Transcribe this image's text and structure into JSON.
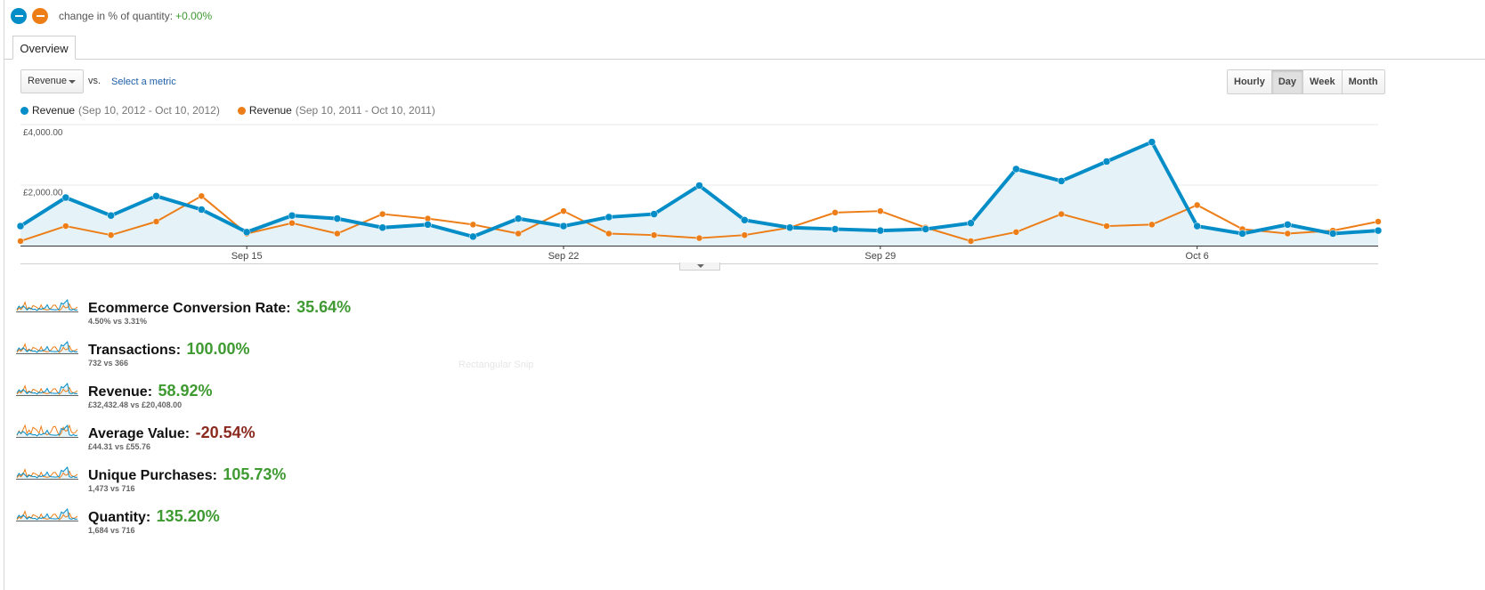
{
  "header": {
    "compare_label": "change in % of quantity:",
    "compare_value": "+0.00%",
    "dot_colors": [
      "#058dc7",
      "#ed7e17"
    ]
  },
  "tabs": [
    {
      "label": "Overview"
    }
  ],
  "controls": {
    "metric_dropdown": "Revenue",
    "vs": "vs.",
    "select_metric": "Select a metric",
    "time_buttons": [
      "Hourly",
      "Day",
      "Week",
      "Month"
    ],
    "active_time": "Day"
  },
  "legend": [
    {
      "name": "Revenue",
      "range": "(Sep 10, 2012 - Oct 10, 2012)",
      "color": "#058dc7"
    },
    {
      "name": "Revenue",
      "range": "(Sep 10, 2011 - Oct 10, 2011)",
      "color": "#ed7e17"
    }
  ],
  "chart_data": {
    "type": "line",
    "x": [
      "Sep 10",
      "Sep 11",
      "Sep 12",
      "Sep 13",
      "Sep 14",
      "Sep 15",
      "Sep 16",
      "Sep 17",
      "Sep 18",
      "Sep 19",
      "Sep 20",
      "Sep 21",
      "Sep 22",
      "Sep 23",
      "Sep 24",
      "Sep 25",
      "Sep 26",
      "Sep 27",
      "Sep 28",
      "Sep 29",
      "Sep 30",
      "Oct 1",
      "Oct 2",
      "Oct 3",
      "Oct 4",
      "Oct 5",
      "Oct 6",
      "Oct 7",
      "Oct 8",
      "Oct 9",
      "Oct 10"
    ],
    "x_ticks": [
      {
        "label": "Sep 15",
        "index": 5
      },
      {
        "label": "Sep 22",
        "index": 12
      },
      {
        "label": "Sep 29",
        "index": 19
      },
      {
        "label": "Oct 6",
        "index": 26
      }
    ],
    "y_ticks": [
      "£4,000.00",
      "£2,000.00"
    ],
    "ylim": [
      0,
      4000
    ],
    "series": [
      {
        "name": "Revenue (Sep 10, 2012 - Oct 10, 2012)",
        "color": "#058dc7",
        "filled": true,
        "values": [
          650,
          1600,
          1000,
          1650,
          1200,
          450,
          1000,
          900,
          600,
          700,
          300,
          900,
          650,
          950,
          1050,
          2000,
          850,
          600,
          550,
          500,
          550,
          750,
          2550,
          2150,
          2800,
          3450,
          650,
          400,
          700,
          400,
          500
        ]
      },
      {
        "name": "Revenue (Sep 10, 2011 - Oct 10, 2011)",
        "color": "#ed7e17",
        "filled": false,
        "values": [
          150,
          650,
          350,
          800,
          1650,
          400,
          750,
          400,
          1050,
          900,
          700,
          400,
          1150,
          400,
          350,
          250,
          350,
          600,
          1100,
          1150,
          600,
          150,
          450,
          1050,
          650,
          700,
          1350,
          550,
          400,
          500,
          800
        ]
      }
    ]
  },
  "metrics": [
    {
      "label": "Ecommerce Conversion Rate:",
      "value": "35.64%",
      "detail": "4.50% vs 3.31%",
      "trend": "positive"
    },
    {
      "label": "Transactions:",
      "value": "100.00%",
      "detail": "732 vs 366",
      "trend": "positive"
    },
    {
      "label": "Revenue:",
      "value": "58.92%",
      "detail": "£32,432.48 vs £20,408.00",
      "trend": "positive"
    },
    {
      "label": "Average Value:",
      "value": "-20.54%",
      "detail": "£44.31 vs £55.76",
      "trend": "negative"
    },
    {
      "label": "Unique Purchases:",
      "value": "105.73%",
      "detail": "1,473 vs 716",
      "trend": "positive"
    },
    {
      "label": "Quantity:",
      "value": "135.20%",
      "detail": "1,684 vs 716",
      "trend": "positive"
    }
  ],
  "ghost_text": "Rectangular Snip"
}
